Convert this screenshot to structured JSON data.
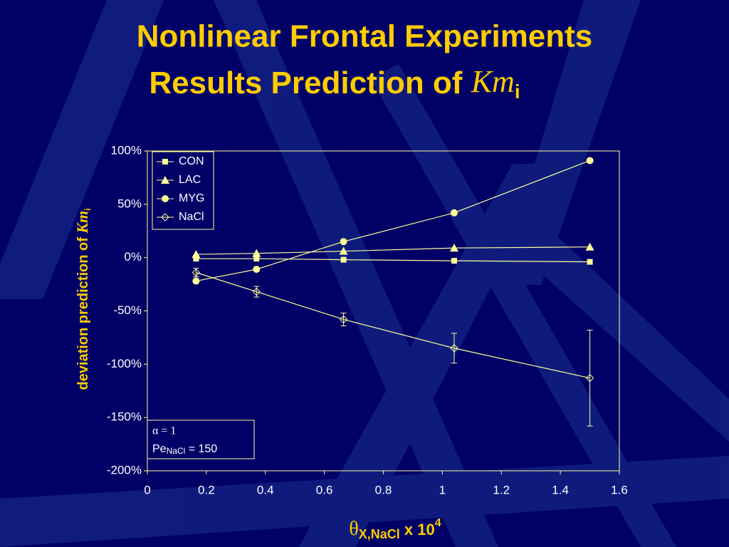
{
  "chart_data": {
    "type": "line",
    "title": [
      "Nonlinear Frontal Experiments",
      "Results Prediction of "
    ],
    "title_symbol": "Km",
    "title_symbol_sub": "i",
    "y_label": "deviation  prediction of ",
    "y_label_symbol": "Km",
    "y_label_symbol_sub": "i",
    "x_label_symbol": "θ",
    "x_label_sub": "X,NaCl",
    "x_label_text": " x 10",
    "x_label_sup": "4",
    "annotation": {
      "line1": "α = 1",
      "pe": "Pe",
      "pe_sub": "NaCl",
      "pe_value": " = 150"
    },
    "x": [
      0.165,
      0.37,
      0.665,
      1.04,
      1.5
    ],
    "series": [
      {
        "name": "CON",
        "color": "#ffff99",
        "marker": "square",
        "values": [
          -1,
          -1,
          -2,
          -3,
          -4
        ]
      },
      {
        "name": "LAC",
        "color": "#ffff99",
        "marker": "triangle",
        "values": [
          3,
          4,
          6,
          9,
          10
        ]
      },
      {
        "name": "MYG",
        "color": "#ffff99",
        "marker": "circle",
        "values": [
          -22,
          -11,
          15,
          42,
          91
        ]
      },
      {
        "name": "NaCl",
        "color": "#ffff99",
        "marker": "diamond",
        "values": [
          -14,
          -32,
          -58,
          -85,
          -113
        ],
        "errors": [
          4,
          5,
          6,
          14,
          45
        ]
      }
    ],
    "xlim": [
      0,
      1.6
    ],
    "xticks": [
      0,
      0.2,
      0.4,
      0.6,
      0.8,
      1,
      1.2,
      1.4,
      1.6
    ],
    "ylim": [
      -200,
      100
    ],
    "yticks": [
      {
        "value": -200,
        "label": "-200%"
      },
      {
        "value": -150,
        "label": "-150%"
      },
      {
        "value": -100,
        "label": "-100%"
      },
      {
        "value": -50,
        "label": "-50%"
      },
      {
        "value": 0,
        "label": "0%"
      },
      {
        "value": 50,
        "label": "50%"
      },
      {
        "value": 100,
        "label": "100%"
      }
    ],
    "legend": "upper left"
  }
}
